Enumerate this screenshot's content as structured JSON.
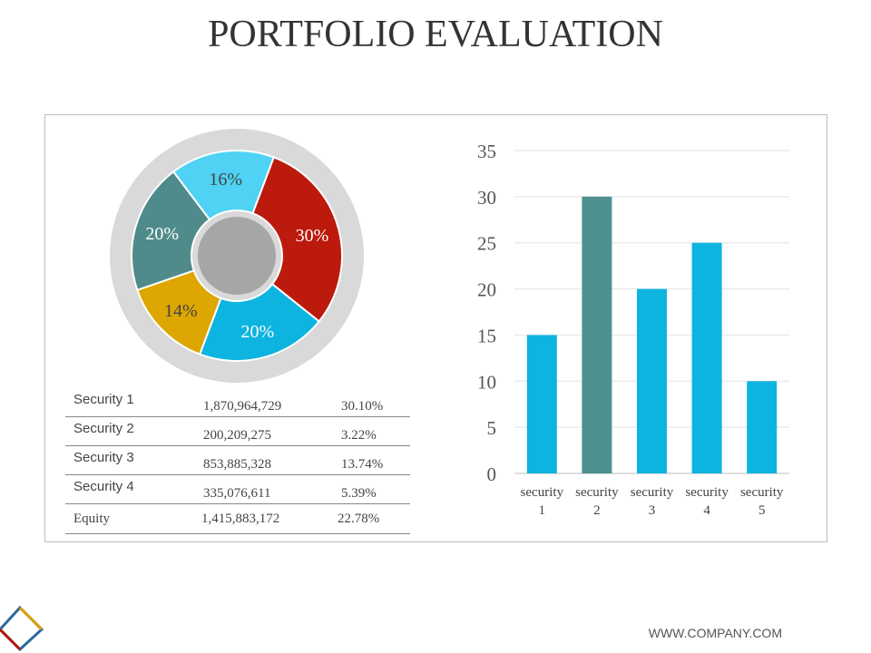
{
  "title": "PORTFOLIO EVALUATION",
  "footer": "WWW.COMPANY.COM",
  "table": [
    {
      "name": "Security  1",
      "value": "1,870,964,729",
      "pct": "30.10%"
    },
    {
      "name": "Security  2",
      "value": "200,209,275",
      "pct": "3.22%"
    },
    {
      "name": "Security  3",
      "value": "853,885,328",
      "pct": "13.74%"
    },
    {
      "name": "Security  4",
      "value": "335,076,611",
      "pct": "5.39%"
    },
    {
      "name": "Equity",
      "value": "1,415,883,172",
      "pct": "22.78%"
    }
  ],
  "chart_data": [
    {
      "type": "pie",
      "variant": "donut",
      "values": [
        16,
        30,
        20,
        14,
        20
      ],
      "labels": [
        "16%",
        "30%",
        "20%",
        "14%",
        "20%"
      ],
      "colors": [
        "#4fd2f4",
        "#bb1a0c",
        "#0eb4e0",
        "#dea600",
        "#4f8b8a"
      ]
    },
    {
      "type": "bar",
      "categories": [
        "security 1",
        "security 2",
        "security 3",
        "security 4",
        "security 5"
      ],
      "values": [
        15,
        30,
        20,
        25,
        10
      ],
      "colors": [
        "#0eb4e0",
        "#4f9090",
        "#0eb4e0",
        "#0eb4e0",
        "#0eb4e0"
      ],
      "ylim": [
        0,
        35
      ],
      "yticks": [
        0,
        5,
        10,
        15,
        20,
        25,
        30,
        35
      ],
      "grid": true
    }
  ]
}
